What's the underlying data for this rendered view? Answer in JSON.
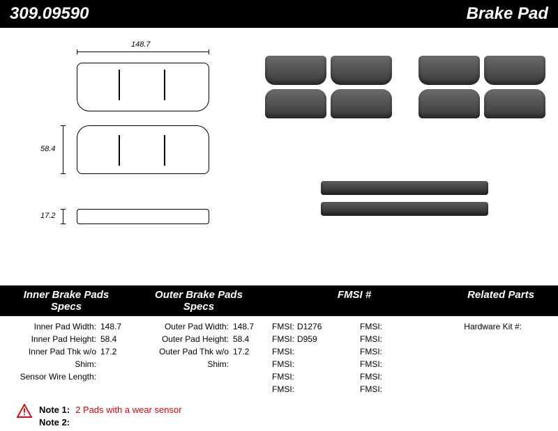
{
  "header": {
    "part_number": "309.09590",
    "product_name": "Brake Pad"
  },
  "dimensions": {
    "width_label": "148.7",
    "height_label": "58.4",
    "thickness_label": "17.2"
  },
  "spec_columns": {
    "inner": "Inner Brake Pads Specs",
    "outer": "Outer Brake Pads Specs",
    "fmsi": "FMSI #",
    "related": "Related Parts"
  },
  "inner_specs": [
    {
      "label": "Inner Pad Width:",
      "value": "148.7"
    },
    {
      "label": "Inner Pad Height:",
      "value": "58.4"
    },
    {
      "label": "Inner Pad Thk w/o Shim:",
      "value": "17.2"
    },
    {
      "label": "Sensor Wire Length:",
      "value": ""
    }
  ],
  "outer_specs": [
    {
      "label": "Outer Pad Width:",
      "value": "148.7"
    },
    {
      "label": "Outer Pad Height:",
      "value": "58.4"
    },
    {
      "label": "Outer Pad Thk w/o Shim:",
      "value": "17.2"
    }
  ],
  "fmsi": [
    {
      "label": "FMSI:",
      "value": "D1276"
    },
    {
      "label": "FMSI:",
      "value": ""
    },
    {
      "label": "FMSI:",
      "value": "D959"
    },
    {
      "label": "FMSI:",
      "value": ""
    },
    {
      "label": "FMSI:",
      "value": ""
    },
    {
      "label": "FMSI:",
      "value": ""
    },
    {
      "label": "FMSI:",
      "value": ""
    },
    {
      "label": "FMSI:",
      "value": ""
    },
    {
      "label": "FMSI:",
      "value": ""
    },
    {
      "label": "FMSI:",
      "value": ""
    },
    {
      "label": "FMSI:",
      "value": ""
    },
    {
      "label": "FMSI:",
      "value": ""
    }
  ],
  "related": [
    {
      "label": "Hardware Kit #:",
      "value": ""
    }
  ],
  "notes": {
    "note1_label": "Note 1:",
    "note1_value": "2 Pads with a wear sensor",
    "note2_label": "Note 2:",
    "note2_value": ""
  },
  "colors": {
    "header_bg": "#000000",
    "header_fg": "#ffffff",
    "note_value_color": "#d40000",
    "warn_border": "#d40000",
    "warn_fill": "#ffffff"
  }
}
